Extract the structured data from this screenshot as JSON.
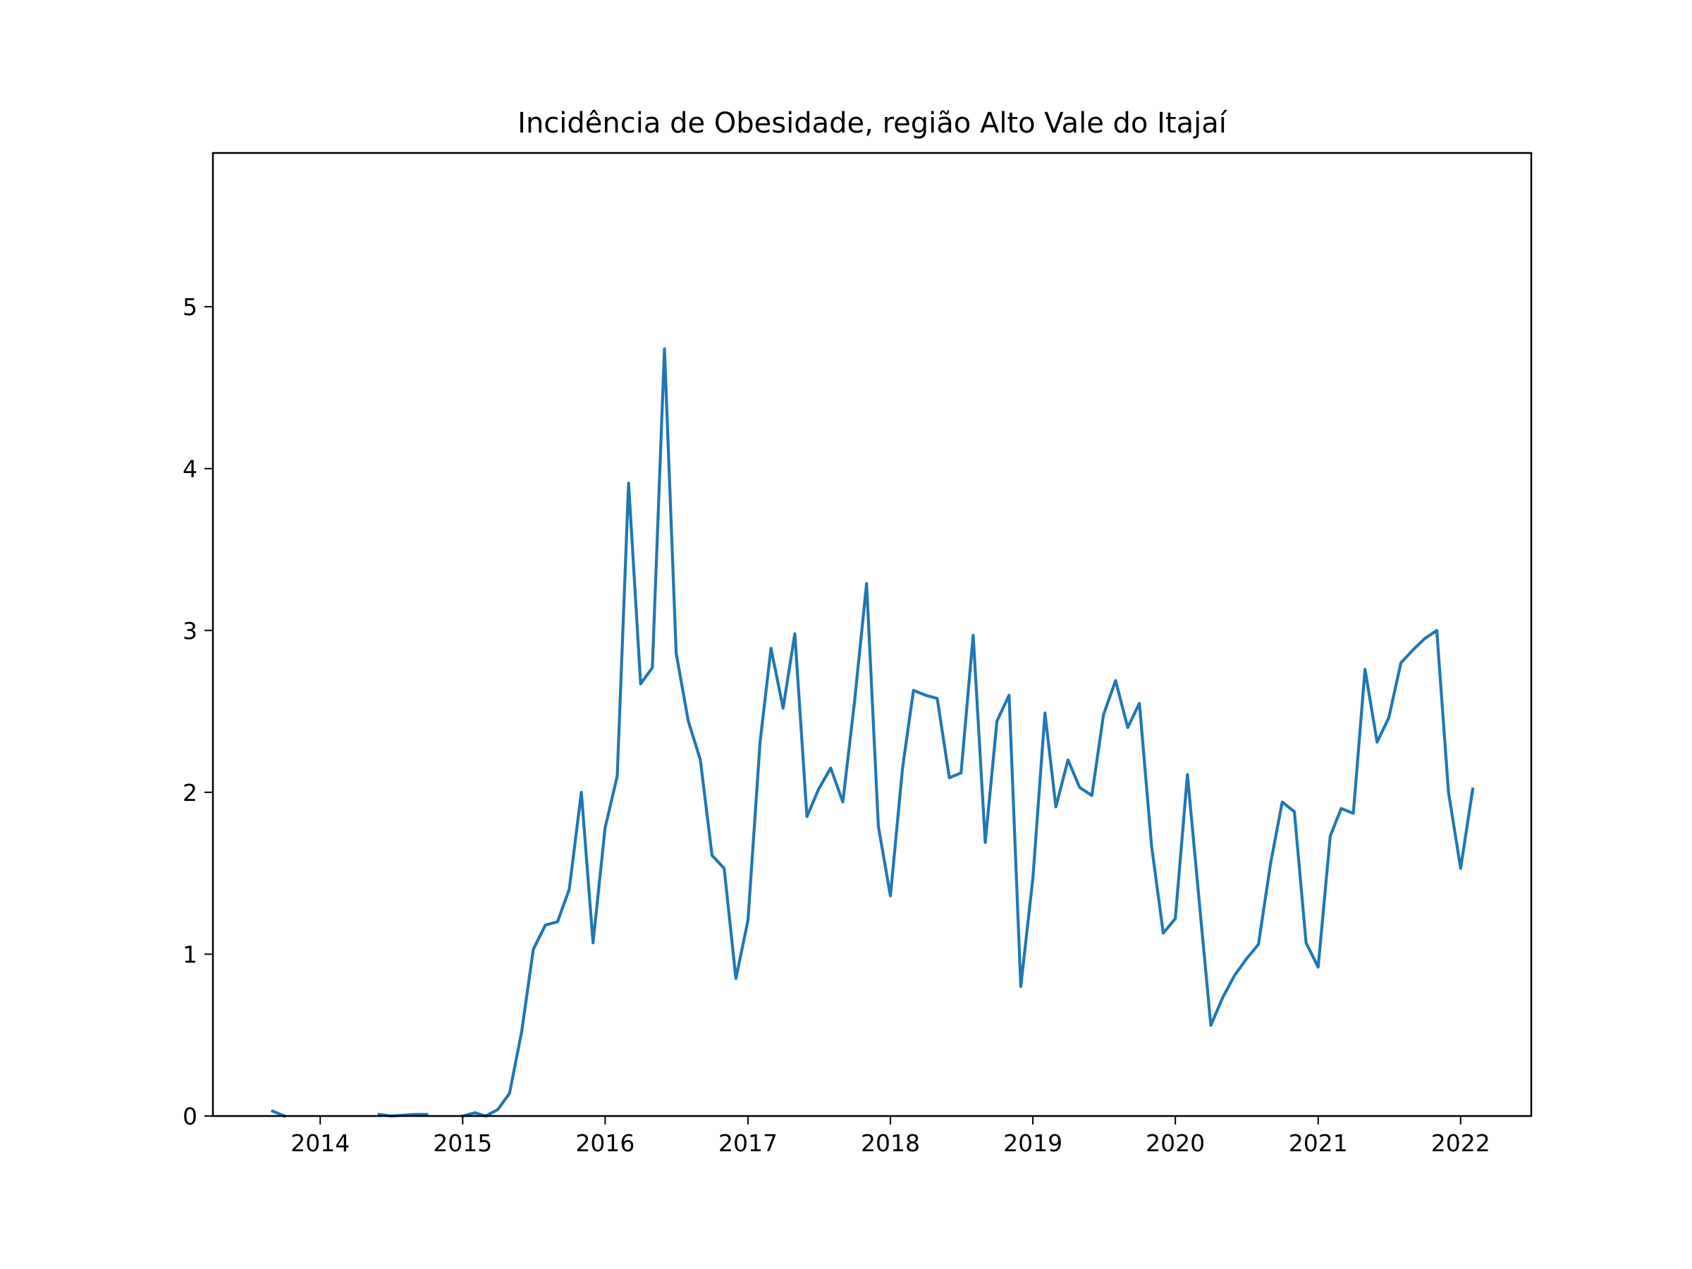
{
  "chart_data": {
    "type": "line",
    "title": "Incidência de Obesidade, região Alto Vale do Itajaí",
    "xlabel": "",
    "ylabel": "",
    "xlim": [
      "2013-04-01",
      "2022-07-01"
    ],
    "ylim": [
      0,
      5.95
    ],
    "grid": false,
    "x_ticks": [
      "2014",
      "2015",
      "2016",
      "2017",
      "2018",
      "2019",
      "2020",
      "2021",
      "2022"
    ],
    "y_ticks": [
      "0",
      "1",
      "2",
      "3",
      "4",
      "5"
    ],
    "colors": {
      "line": "#1f77b4",
      "axes": "#000000",
      "background": "#ffffff"
    },
    "series": [
      {
        "segments": [
          [
            [
              "2013-09",
              0.03
            ],
            [
              "2013-10",
              0.0
            ]
          ],
          [
            [
              "2014-06",
              0.01
            ],
            [
              "2014-07",
              0.0
            ],
            [
              "2014-08",
              0.005
            ],
            [
              "2014-09",
              0.01
            ],
            [
              "2014-10",
              0.01
            ]
          ],
          [
            [
              "2015-01",
              0.0
            ],
            [
              "2015-02",
              0.02
            ],
            [
              "2015-03",
              0.0
            ],
            [
              "2015-04",
              0.04
            ],
            [
              "2015-05",
              0.14
            ],
            [
              "2015-06",
              0.52
            ],
            [
              "2015-07",
              1.03
            ],
            [
              "2015-08",
              1.18
            ],
            [
              "2015-09",
              1.2
            ],
            [
              "2015-10",
              1.4
            ],
            [
              "2015-11",
              2.0
            ],
            [
              "2015-12",
              1.07
            ],
            [
              "2016-01",
              1.78
            ],
            [
              "2016-02",
              2.1
            ],
            [
              "2016-03",
              3.91
            ],
            [
              "2016-04",
              2.67
            ],
            [
              "2016-05",
              2.77
            ],
            [
              "2016-06",
              4.74
            ],
            [
              "2016-07",
              2.86
            ],
            [
              "2016-08",
              2.44
            ],
            [
              "2016-09",
              2.2
            ],
            [
              "2016-10",
              1.61
            ],
            [
              "2016-11",
              1.53
            ],
            [
              "2016-12",
              0.85
            ],
            [
              "2017-01",
              1.21
            ],
            [
              "2017-02",
              2.31
            ],
            [
              "2017-03",
              2.89
            ],
            [
              "2017-04",
              2.52
            ],
            [
              "2017-05",
              2.98
            ],
            [
              "2017-06",
              1.85
            ],
            [
              "2017-07",
              2.02
            ],
            [
              "2017-08",
              2.15
            ],
            [
              "2017-09",
              1.94
            ],
            [
              "2017-10",
              2.56
            ],
            [
              "2017-11",
              3.29
            ],
            [
              "2017-12",
              1.79
            ],
            [
              "2018-01",
              1.36
            ],
            [
              "2018-02",
              2.15
            ],
            [
              "2018-03",
              2.63
            ],
            [
              "2018-04",
              2.6
            ],
            [
              "2018-05",
              2.58
            ],
            [
              "2018-06",
              2.09
            ],
            [
              "2018-07",
              2.12
            ],
            [
              "2018-08",
              2.97
            ],
            [
              "2018-09",
              1.69
            ],
            [
              "2018-10",
              2.44
            ],
            [
              "2018-11",
              2.6
            ],
            [
              "2018-12",
              0.8
            ],
            [
              "2019-01",
              1.47
            ],
            [
              "2019-02",
              2.49
            ],
            [
              "2019-03",
              1.91
            ],
            [
              "2019-04",
              2.2
            ],
            [
              "2019-05",
              2.03
            ],
            [
              "2019-06",
              1.98
            ],
            [
              "2019-07",
              2.48
            ],
            [
              "2019-08",
              2.69
            ],
            [
              "2019-09",
              2.4
            ],
            [
              "2019-10",
              2.55
            ],
            [
              "2019-11",
              1.67
            ],
            [
              "2019-12",
              1.13
            ],
            [
              "2020-01",
              1.22
            ],
            [
              "2020-02",
              2.11
            ],
            [
              "2020-03",
              1.36
            ],
            [
              "2020-04",
              0.56
            ],
            [
              "2020-05",
              0.73
            ],
            [
              "2020-06",
              0.87
            ],
            [
              "2020-07",
              0.97
            ],
            [
              "2020-08",
              1.06
            ],
            [
              "2020-09",
              1.56
            ],
            [
              "2020-10",
              1.94
            ],
            [
              "2020-11",
              1.88
            ],
            [
              "2020-12",
              1.07
            ],
            [
              "2021-01",
              0.92
            ],
            [
              "2021-02",
              1.73
            ],
            [
              "2021-03",
              1.9
            ],
            [
              "2021-04",
              1.87
            ],
            [
              "2021-05",
              2.76
            ],
            [
              "2021-06",
              2.31
            ],
            [
              "2021-07",
              2.46
            ],
            [
              "2021-08",
              2.8
            ],
            [
              "2021-09",
              2.88
            ],
            [
              "2021-10",
              2.95
            ],
            [
              "2021-11",
              3.0
            ],
            [
              "2021-12",
              2.0
            ],
            [
              "2022-01",
              1.53
            ],
            [
              "2022-02",
              2.02
            ]
          ]
        ]
      }
    ]
  }
}
